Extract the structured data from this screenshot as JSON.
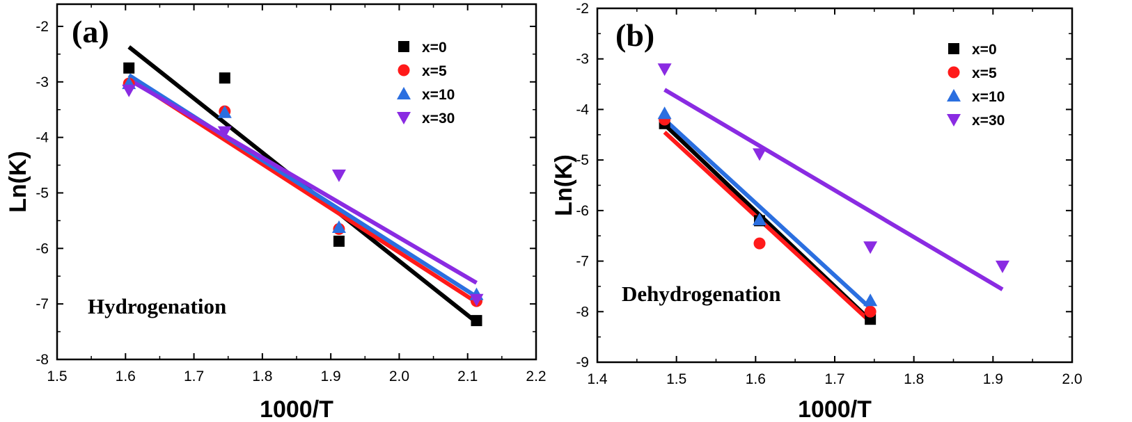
{
  "chart_data": [
    {
      "type": "scatter",
      "panel_label": "(a)",
      "annotation": "Hydrogenation",
      "xlabel": "1000/T",
      "ylabel": "Ln(K)",
      "xlim": [
        1.5,
        2.2
      ],
      "ylim": [
        -8,
        -1.6
      ],
      "x_ticks": [
        1.5,
        1.6,
        1.7,
        1.8,
        1.9,
        2.0,
        2.1,
        2.2
      ],
      "x_tick_labels": [
        "1.5",
        "1.6",
        "1.7",
        "1.8",
        "1.9",
        "2.0",
        "2.1",
        "2.2"
      ],
      "y_ticks": [
        -8,
        -7,
        -6,
        -5,
        -4,
        -3,
        -2
      ],
      "y_tick_labels": [
        "-8",
        "-7",
        "-6",
        "-5",
        "-4",
        "-3",
        "-2"
      ],
      "legend_position": "top-right",
      "grid": false,
      "series": [
        {
          "name": "x=0",
          "color": "#000000",
          "marker": "square",
          "x": [
            1.605,
            1.745,
            1.912,
            2.113
          ],
          "y": [
            -2.75,
            -2.93,
            -5.87,
            -7.3
          ],
          "fit": {
            "x": [
              1.605,
              2.113
            ],
            "y": [
              -2.37,
              -7.33
            ]
          }
        },
        {
          "name": "x=5",
          "color": "#ff1a1a",
          "marker": "circle",
          "x": [
            1.605,
            1.745,
            1.912,
            2.113
          ],
          "y": [
            -3.03,
            -3.53,
            -5.65,
            -6.95
          ],
          "fit": {
            "x": [
              1.605,
              2.113
            ],
            "y": [
              -2.93,
              -6.97
            ]
          }
        },
        {
          "name": "x=10",
          "color": "#2b6fe0",
          "marker": "triangle-up",
          "x": [
            1.605,
            1.745,
            1.912,
            2.113
          ],
          "y": [
            -3.03,
            -3.55,
            -5.62,
            -6.83
          ],
          "fit": {
            "x": [
              1.605,
              2.113
            ],
            "y": [
              -2.88,
              -6.87
            ]
          }
        },
        {
          "name": "x=30",
          "color": "#8a2be2",
          "marker": "triangle-down",
          "x": [
            1.605,
            1.745,
            1.912,
            2.113
          ],
          "y": [
            -3.15,
            -3.9,
            -4.68,
            -6.92
          ],
          "fit": {
            "x": [
              1.605,
              2.113
            ],
            "y": [
              -2.96,
              -6.62
            ]
          }
        }
      ]
    },
    {
      "type": "scatter",
      "panel_label": "(b)",
      "annotation": "Dehydrogenation",
      "xlabel": "1000/T",
      "ylabel": "Ln(K)",
      "xlim": [
        1.4,
        2.0
      ],
      "ylim": [
        -9,
        -2
      ],
      "x_ticks": [
        1.4,
        1.5,
        1.6,
        1.7,
        1.8,
        1.9,
        2.0
      ],
      "x_tick_labels": [
        "1.4",
        "1.5",
        "1.6",
        "1.7",
        "1.8",
        "1.9",
        "2.0"
      ],
      "y_ticks": [
        -9,
        -8,
        -7,
        -6,
        -5,
        -4,
        -3,
        -2
      ],
      "y_tick_labels": [
        "-9",
        "-8",
        "-7",
        "-6",
        "-5",
        "-4",
        "-3",
        "-2"
      ],
      "legend_position": "top-right",
      "grid": false,
      "series": [
        {
          "name": "x=0",
          "color": "#000000",
          "marker": "square",
          "x": [
            1.485,
            1.605,
            1.745
          ],
          "y": [
            -4.28,
            -6.2,
            -8.15
          ],
          "fit": {
            "x": [
              1.485,
              1.745
            ],
            "y": [
              -4.3,
              -8.17
            ]
          }
        },
        {
          "name": "x=5",
          "color": "#ff1a1a",
          "marker": "circle",
          "x": [
            1.485,
            1.605,
            1.745
          ],
          "y": [
            -4.2,
            -6.65,
            -8.0
          ],
          "fit": {
            "x": [
              1.485,
              1.745
            ],
            "y": [
              -4.45,
              -8.2
            ]
          }
        },
        {
          "name": "x=10",
          "color": "#2b6fe0",
          "marker": "triangle-up",
          "x": [
            1.485,
            1.605,
            1.745
          ],
          "y": [
            -4.08,
            -6.18,
            -7.78
          ],
          "fit": {
            "x": [
              1.485,
              1.745
            ],
            "y": [
              -4.2,
              -7.93
            ]
          }
        },
        {
          "name": "x=30",
          "color": "#8a2be2",
          "marker": "triangle-down",
          "x": [
            1.485,
            1.605,
            1.745,
            1.912
          ],
          "y": [
            -3.2,
            -4.88,
            -6.72,
            -7.1
          ],
          "fit": {
            "x": [
              1.485,
              1.912
            ],
            "y": [
              -3.61,
              -7.56
            ]
          }
        }
      ]
    }
  ]
}
